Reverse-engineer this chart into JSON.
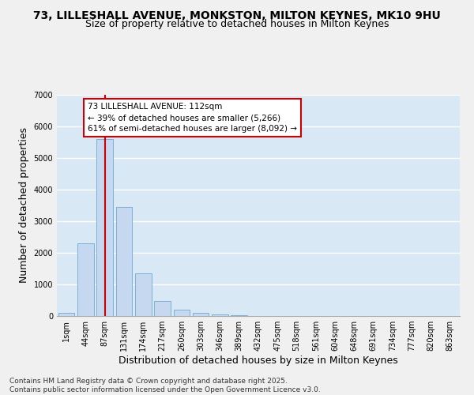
{
  "title_line1": "73, LILLESHALL AVENUE, MONKSTON, MILTON KEYNES, MK10 9HU",
  "title_line2": "Size of property relative to detached houses in Milton Keynes",
  "xlabel": "Distribution of detached houses by size in Milton Keynes",
  "ylabel": "Number of detached properties",
  "categories": [
    "1sqm",
    "44sqm",
    "87sqm",
    "131sqm",
    "174sqm",
    "217sqm",
    "260sqm",
    "303sqm",
    "346sqm",
    "389sqm",
    "432sqm",
    "475sqm",
    "518sqm",
    "561sqm",
    "604sqm",
    "648sqm",
    "691sqm",
    "734sqm",
    "777sqm",
    "820sqm",
    "863sqm"
  ],
  "values": [
    100,
    2300,
    5600,
    3450,
    1350,
    480,
    200,
    100,
    60,
    30,
    0,
    0,
    0,
    0,
    0,
    0,
    0,
    0,
    0,
    0,
    0
  ],
  "bar_color": "#c5d8f0",
  "bar_edge_color": "#6aaad4",
  "vline_x_index": 2,
  "vline_color": "#cc0000",
  "annotation_text": "73 LILLESHALL AVENUE: 112sqm\n← 39% of detached houses are smaller (5,266)\n61% of semi-detached houses are larger (8,092) →",
  "annotation_box_facecolor": "#ffffff",
  "annotation_box_edgecolor": "#cc0000",
  "ylim": [
    0,
    7000
  ],
  "yticks": [
    0,
    1000,
    2000,
    3000,
    4000,
    5000,
    6000,
    7000
  ],
  "background_color": "#d8e8f4",
  "grid_color": "#ffffff",
  "footnote": "Contains HM Land Registry data © Crown copyright and database right 2025.\nContains public sector information licensed under the Open Government Licence v3.0.",
  "title_fontsize": 10,
  "subtitle_fontsize": 9,
  "axis_label_fontsize": 9,
  "tick_fontsize": 7,
  "annotation_fontsize": 7.5,
  "footnote_fontsize": 6.5
}
